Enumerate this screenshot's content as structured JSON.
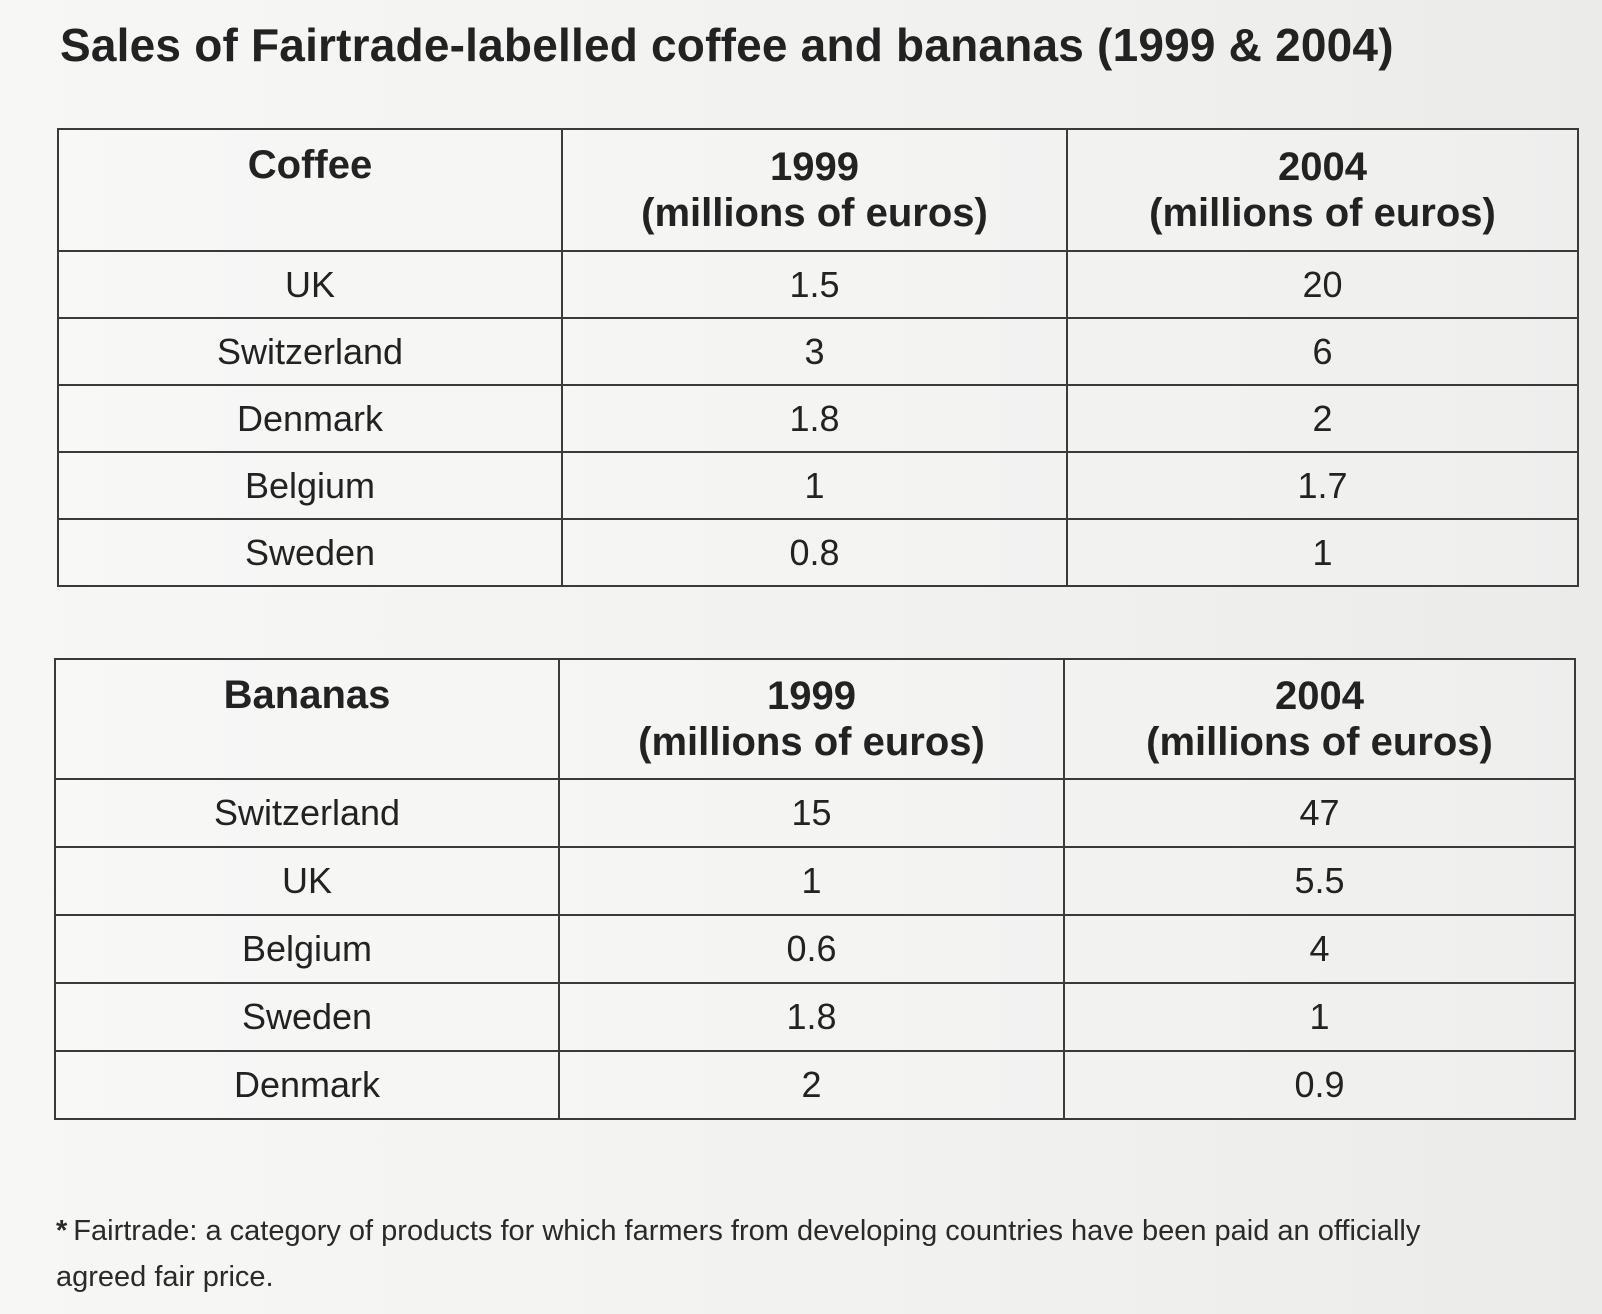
{
  "title": "Sales of Fairtrade-labelled coffee and bananas (1999 & 2004)",
  "footnote": {
    "marker": "*",
    "text": "Fairtrade: a category of products for which farmers from developing countries have been paid an officially agreed fair price."
  },
  "chart_data": [
    {
      "type": "table",
      "header": {
        "product": "Coffee",
        "col1_year": "1999",
        "col1_unit": "(millions of euros)",
        "col2_year": "2004",
        "col2_unit": "(millions of euros)"
      },
      "rows": [
        {
          "country": "UK",
          "v1999": "1.5",
          "v2004": "20"
        },
        {
          "country": "Switzerland",
          "v1999": "3",
          "v2004": "6"
        },
        {
          "country": "Denmark",
          "v1999": "1.8",
          "v2004": "2"
        },
        {
          "country": "Belgium",
          "v1999": "1",
          "v2004": "1.7"
        },
        {
          "country": "Sweden",
          "v1999": "0.8",
          "v2004": "1"
        }
      ]
    },
    {
      "type": "table",
      "header": {
        "product": "Bananas",
        "col1_year": "1999",
        "col1_unit": "(millions of euros)",
        "col2_year": "2004",
        "col2_unit": "(millions of euros)"
      },
      "rows": [
        {
          "country": "Switzerland",
          "v1999": "15",
          "v2004": "47"
        },
        {
          "country": "UK",
          "v1999": "1",
          "v2004": "5.5"
        },
        {
          "country": "Belgium",
          "v1999": "0.6",
          "v2004": "4"
        },
        {
          "country": "Sweden",
          "v1999": "1.8",
          "v2004": "1"
        },
        {
          "country": "Denmark",
          "v1999": "2",
          "v2004": "0.9"
        }
      ]
    }
  ]
}
